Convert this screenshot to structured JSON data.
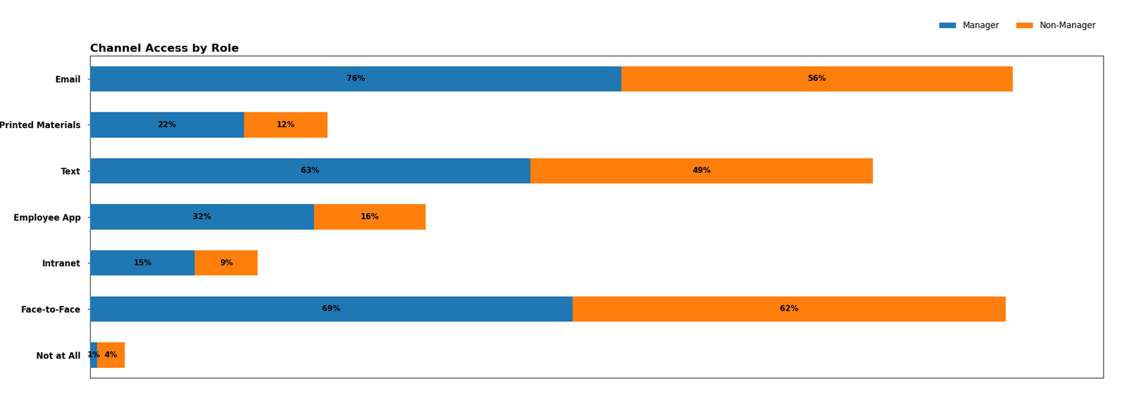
{
  "chart_data": {
    "type": "bar",
    "orientation": "horizontal",
    "stacked": true,
    "title": "Channel Access by Role",
    "categories": [
      "Email",
      "Printed Materials",
      "Text",
      "Employee App",
      "Intranet",
      "Face-to-Face",
      "Not at All"
    ],
    "series": [
      {
        "name": "Manager",
        "values": [
          76,
          22,
          63,
          32,
          15,
          69,
          1
        ],
        "value_labels": [
          "76%",
          "22%",
          "63%",
          "32%",
          "15%",
          "69%",
          "1%"
        ]
      },
      {
        "name": "Non-Manager",
        "values": [
          56,
          12,
          49,
          16,
          9,
          62,
          4
        ],
        "value_labels": [
          "56%",
          "12%",
          "49%",
          "16%",
          "9%",
          "62%",
          "4%"
        ]
      }
    ],
    "xlim": [
      0,
      145
    ],
    "xticks": [],
    "data_labels": true,
    "tick_labels": "y",
    "legend": "upper right"
  }
}
